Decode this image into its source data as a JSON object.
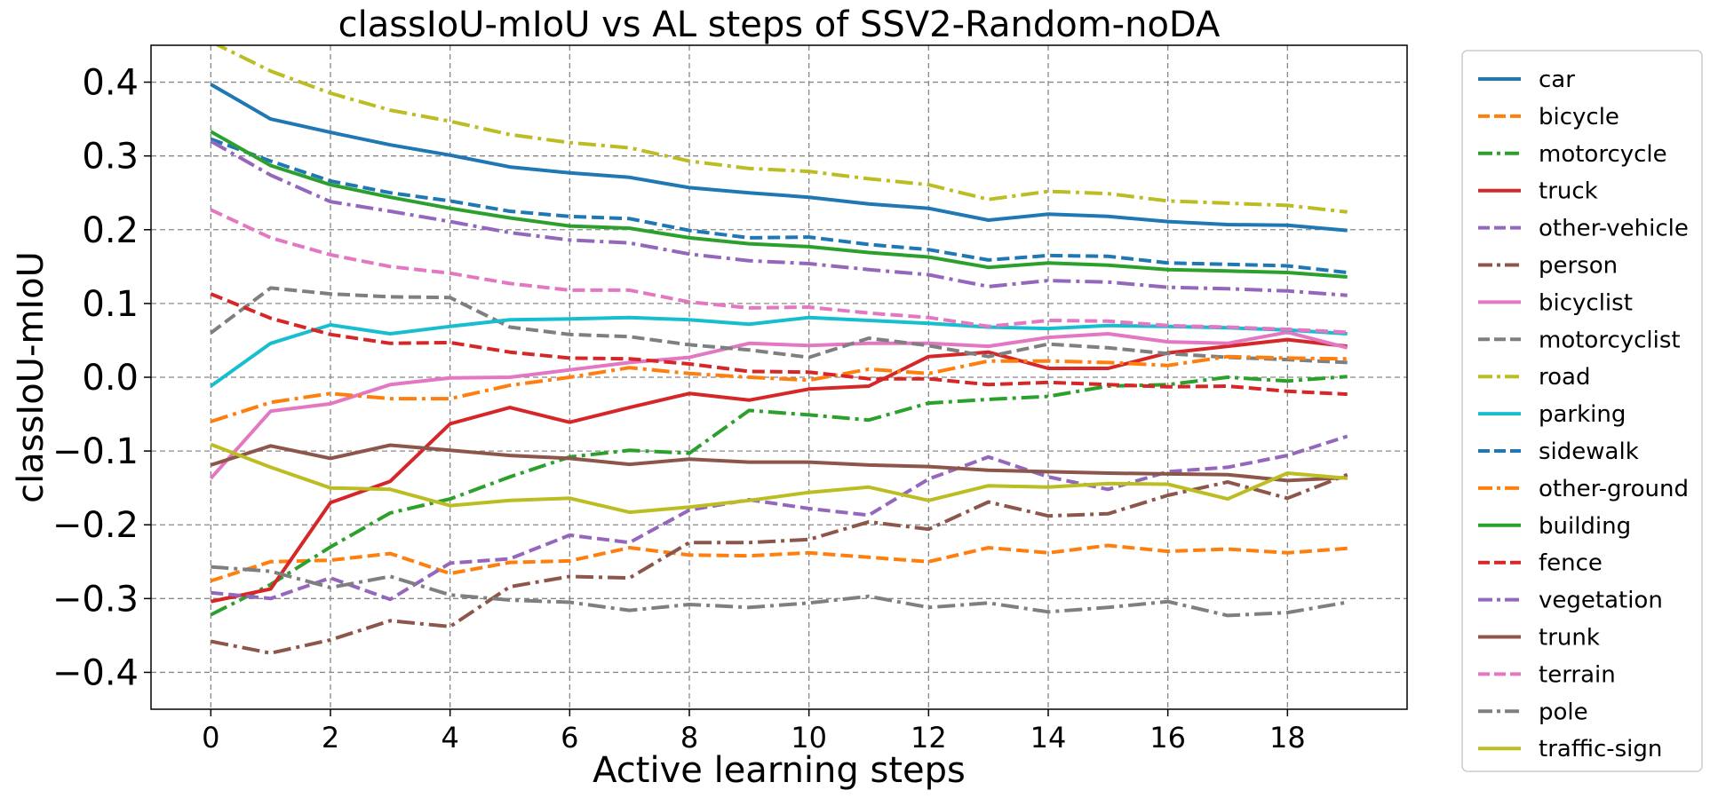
{
  "chart_data": {
    "type": "line",
    "title": "classIoU-mIoU vs AL steps of SSV2-Random-noDA",
    "xlabel": "Active learning steps",
    "ylabel": "classIoU-mIoU",
    "xlim": [
      -1,
      20
    ],
    "ylim": [
      -0.45,
      0.45
    ],
    "xticks": [
      0,
      2,
      4,
      6,
      8,
      10,
      12,
      14,
      16,
      18
    ],
    "xtick_labels": [
      "0",
      "2",
      "4",
      "6",
      "8",
      "10",
      "12",
      "14",
      "16",
      "18"
    ],
    "yticks": [
      -0.4,
      -0.3,
      -0.2,
      -0.1,
      0.0,
      0.1,
      0.2,
      0.3,
      0.4
    ],
    "ytick_labels": [
      "−0.4",
      "−0.3",
      "−0.2",
      "−0.1",
      "0.0",
      "0.1",
      "0.2",
      "0.3",
      "0.4"
    ],
    "grid": true,
    "legend_position": "outside-right",
    "x": [
      0,
      1,
      2,
      3,
      4,
      5,
      6,
      7,
      8,
      9,
      10,
      11,
      12,
      13,
      14,
      15,
      16,
      17,
      18,
      19
    ],
    "series": [
      {
        "name": "car",
        "color": "#1f77b4",
        "style": "solid",
        "values": [
          0.397,
          0.35,
          0.332,
          0.315,
          0.301,
          0.285,
          0.277,
          0.271,
          0.257,
          0.25,
          0.244,
          0.235,
          0.229,
          0.213,
          0.221,
          0.218,
          0.211,
          0.207,
          0.206,
          0.199
        ]
      },
      {
        "name": "bicycle",
        "color": "#ff7f0e",
        "style": "dashed",
        "values": [
          -0.276,
          -0.25,
          -0.248,
          -0.239,
          -0.266,
          -0.251,
          -0.249,
          -0.231,
          -0.241,
          -0.242,
          -0.238,
          -0.244,
          -0.25,
          -0.231,
          -0.238,
          -0.228,
          -0.236,
          -0.233,
          -0.238,
          -0.232
        ]
      },
      {
        "name": "motorcycle",
        "color": "#2ca02c",
        "style": "dashdot",
        "values": [
          -0.322,
          -0.281,
          -0.23,
          -0.184,
          -0.165,
          -0.135,
          -0.108,
          -0.099,
          -0.103,
          -0.045,
          -0.051,
          -0.058,
          -0.035,
          -0.03,
          -0.026,
          -0.012,
          -0.01,
          0.0,
          -0.005,
          0.001
        ]
      },
      {
        "name": "truck",
        "color": "#d62728",
        "style": "solid",
        "values": [
          -0.304,
          -0.287,
          -0.17,
          -0.141,
          -0.063,
          -0.041,
          -0.061,
          -0.041,
          -0.022,
          -0.031,
          -0.016,
          -0.012,
          0.028,
          0.034,
          0.012,
          0.012,
          0.033,
          0.042,
          0.051,
          0.042
        ]
      },
      {
        "name": "other-vehicle",
        "color": "#9467bd",
        "style": "dashed",
        "values": [
          -0.292,
          -0.3,
          -0.272,
          -0.301,
          -0.252,
          -0.246,
          -0.214,
          -0.224,
          -0.18,
          -0.166,
          -0.178,
          -0.187,
          -0.138,
          -0.108,
          -0.135,
          -0.152,
          -0.128,
          -0.122,
          -0.106,
          -0.08
        ]
      },
      {
        "name": "person",
        "color": "#8c564b",
        "style": "dashdot",
        "values": [
          -0.358,
          -0.374,
          -0.356,
          -0.33,
          -0.338,
          -0.284,
          -0.27,
          -0.272,
          -0.224,
          -0.224,
          -0.22,
          -0.196,
          -0.206,
          -0.169,
          -0.188,
          -0.185,
          -0.16,
          -0.142,
          -0.164,
          -0.132
        ]
      },
      {
        "name": "bicyclist",
        "color": "#e377c2",
        "style": "solid",
        "values": [
          -0.137,
          -0.046,
          -0.036,
          -0.01,
          -0.001,
          0.0,
          0.01,
          0.02,
          0.027,
          0.046,
          0.043,
          0.046,
          0.046,
          0.042,
          0.054,
          0.059,
          0.048,
          0.046,
          0.061,
          0.04
        ]
      },
      {
        "name": "motorcyclist",
        "color": "#7f7f7f",
        "style": "dashed",
        "values": [
          0.06,
          0.121,
          0.113,
          0.109,
          0.108,
          0.068,
          0.058,
          0.055,
          0.044,
          0.037,
          0.027,
          0.053,
          0.043,
          0.028,
          0.045,
          0.04,
          0.032,
          0.027,
          0.024,
          0.02
        ]
      },
      {
        "name": "road",
        "color": "#bcbd22",
        "style": "dashdot",
        "values": [
          0.455,
          0.415,
          0.385,
          0.362,
          0.347,
          0.329,
          0.318,
          0.311,
          0.293,
          0.283,
          0.279,
          0.269,
          0.261,
          0.241,
          0.252,
          0.249,
          0.239,
          0.236,
          0.233,
          0.224
        ]
      },
      {
        "name": "parking",
        "color": "#17becf",
        "style": "solid",
        "values": [
          -0.012,
          0.046,
          0.071,
          0.059,
          0.069,
          0.078,
          0.079,
          0.081,
          0.078,
          0.072,
          0.081,
          0.077,
          0.073,
          0.068,
          0.066,
          0.07,
          0.069,
          0.067,
          0.064,
          0.059
        ]
      },
      {
        "name": "sidewalk",
        "color": "#1f77b4",
        "style": "dashed",
        "values": [
          0.323,
          0.293,
          0.266,
          0.25,
          0.239,
          0.225,
          0.218,
          0.215,
          0.199,
          0.189,
          0.19,
          0.18,
          0.173,
          0.159,
          0.165,
          0.164,
          0.155,
          0.153,
          0.151,
          0.142
        ]
      },
      {
        "name": "other-ground",
        "color": "#ff7f0e",
        "style": "dashdot",
        "values": [
          -0.06,
          -0.034,
          -0.022,
          -0.029,
          -0.029,
          -0.011,
          0.0,
          0.013,
          0.005,
          0.0,
          -0.004,
          0.011,
          0.005,
          0.022,
          0.022,
          0.02,
          0.016,
          0.028,
          0.026,
          0.025
        ]
      },
      {
        "name": "building",
        "color": "#2ca02c",
        "style": "solid",
        "values": [
          0.333,
          0.287,
          0.261,
          0.244,
          0.229,
          0.216,
          0.205,
          0.202,
          0.189,
          0.181,
          0.177,
          0.169,
          0.163,
          0.149,
          0.155,
          0.152,
          0.146,
          0.144,
          0.142,
          0.136
        ]
      },
      {
        "name": "fence",
        "color": "#d62728",
        "style": "dashed",
        "values": [
          0.113,
          0.08,
          0.058,
          0.046,
          0.047,
          0.034,
          0.026,
          0.025,
          0.018,
          0.008,
          0.007,
          -0.002,
          -0.002,
          -0.01,
          -0.007,
          -0.01,
          -0.013,
          -0.012,
          -0.019,
          -0.023
        ]
      },
      {
        "name": "vegetation",
        "color": "#9467bd",
        "style": "dashdot",
        "values": [
          0.32,
          0.274,
          0.238,
          0.225,
          0.211,
          0.196,
          0.186,
          0.182,
          0.167,
          0.158,
          0.154,
          0.146,
          0.139,
          0.123,
          0.131,
          0.129,
          0.122,
          0.12,
          0.117,
          0.111
        ]
      },
      {
        "name": "trunk",
        "color": "#8c564b",
        "style": "solid",
        "values": [
          -0.119,
          -0.093,
          -0.11,
          -0.092,
          -0.099,
          -0.106,
          -0.11,
          -0.118,
          -0.111,
          -0.115,
          -0.115,
          -0.119,
          -0.121,
          -0.126,
          -0.128,
          -0.13,
          -0.131,
          -0.132,
          -0.14,
          -0.136
        ]
      },
      {
        "name": "terrain",
        "color": "#e377c2",
        "style": "dashed",
        "values": [
          0.227,
          0.189,
          0.166,
          0.15,
          0.141,
          0.127,
          0.118,
          0.118,
          0.102,
          0.094,
          0.095,
          0.087,
          0.081,
          0.069,
          0.077,
          0.076,
          0.07,
          0.068,
          0.065,
          0.061
        ]
      },
      {
        "name": "pole",
        "color": "#7f7f7f",
        "style": "dashdot",
        "values": [
          -0.257,
          -0.263,
          -0.285,
          -0.27,
          -0.295,
          -0.302,
          -0.305,
          -0.316,
          -0.308,
          -0.312,
          -0.306,
          -0.297,
          -0.312,
          -0.306,
          -0.318,
          -0.312,
          -0.304,
          -0.323,
          -0.319,
          -0.305
        ]
      },
      {
        "name": "traffic-sign",
        "color": "#bcbd22",
        "style": "solid",
        "values": [
          -0.091,
          -0.122,
          -0.15,
          -0.152,
          -0.174,
          -0.167,
          -0.164,
          -0.183,
          -0.176,
          -0.167,
          -0.156,
          -0.149,
          -0.167,
          -0.147,
          -0.149,
          -0.144,
          -0.145,
          -0.165,
          -0.13,
          -0.137
        ]
      }
    ]
  }
}
